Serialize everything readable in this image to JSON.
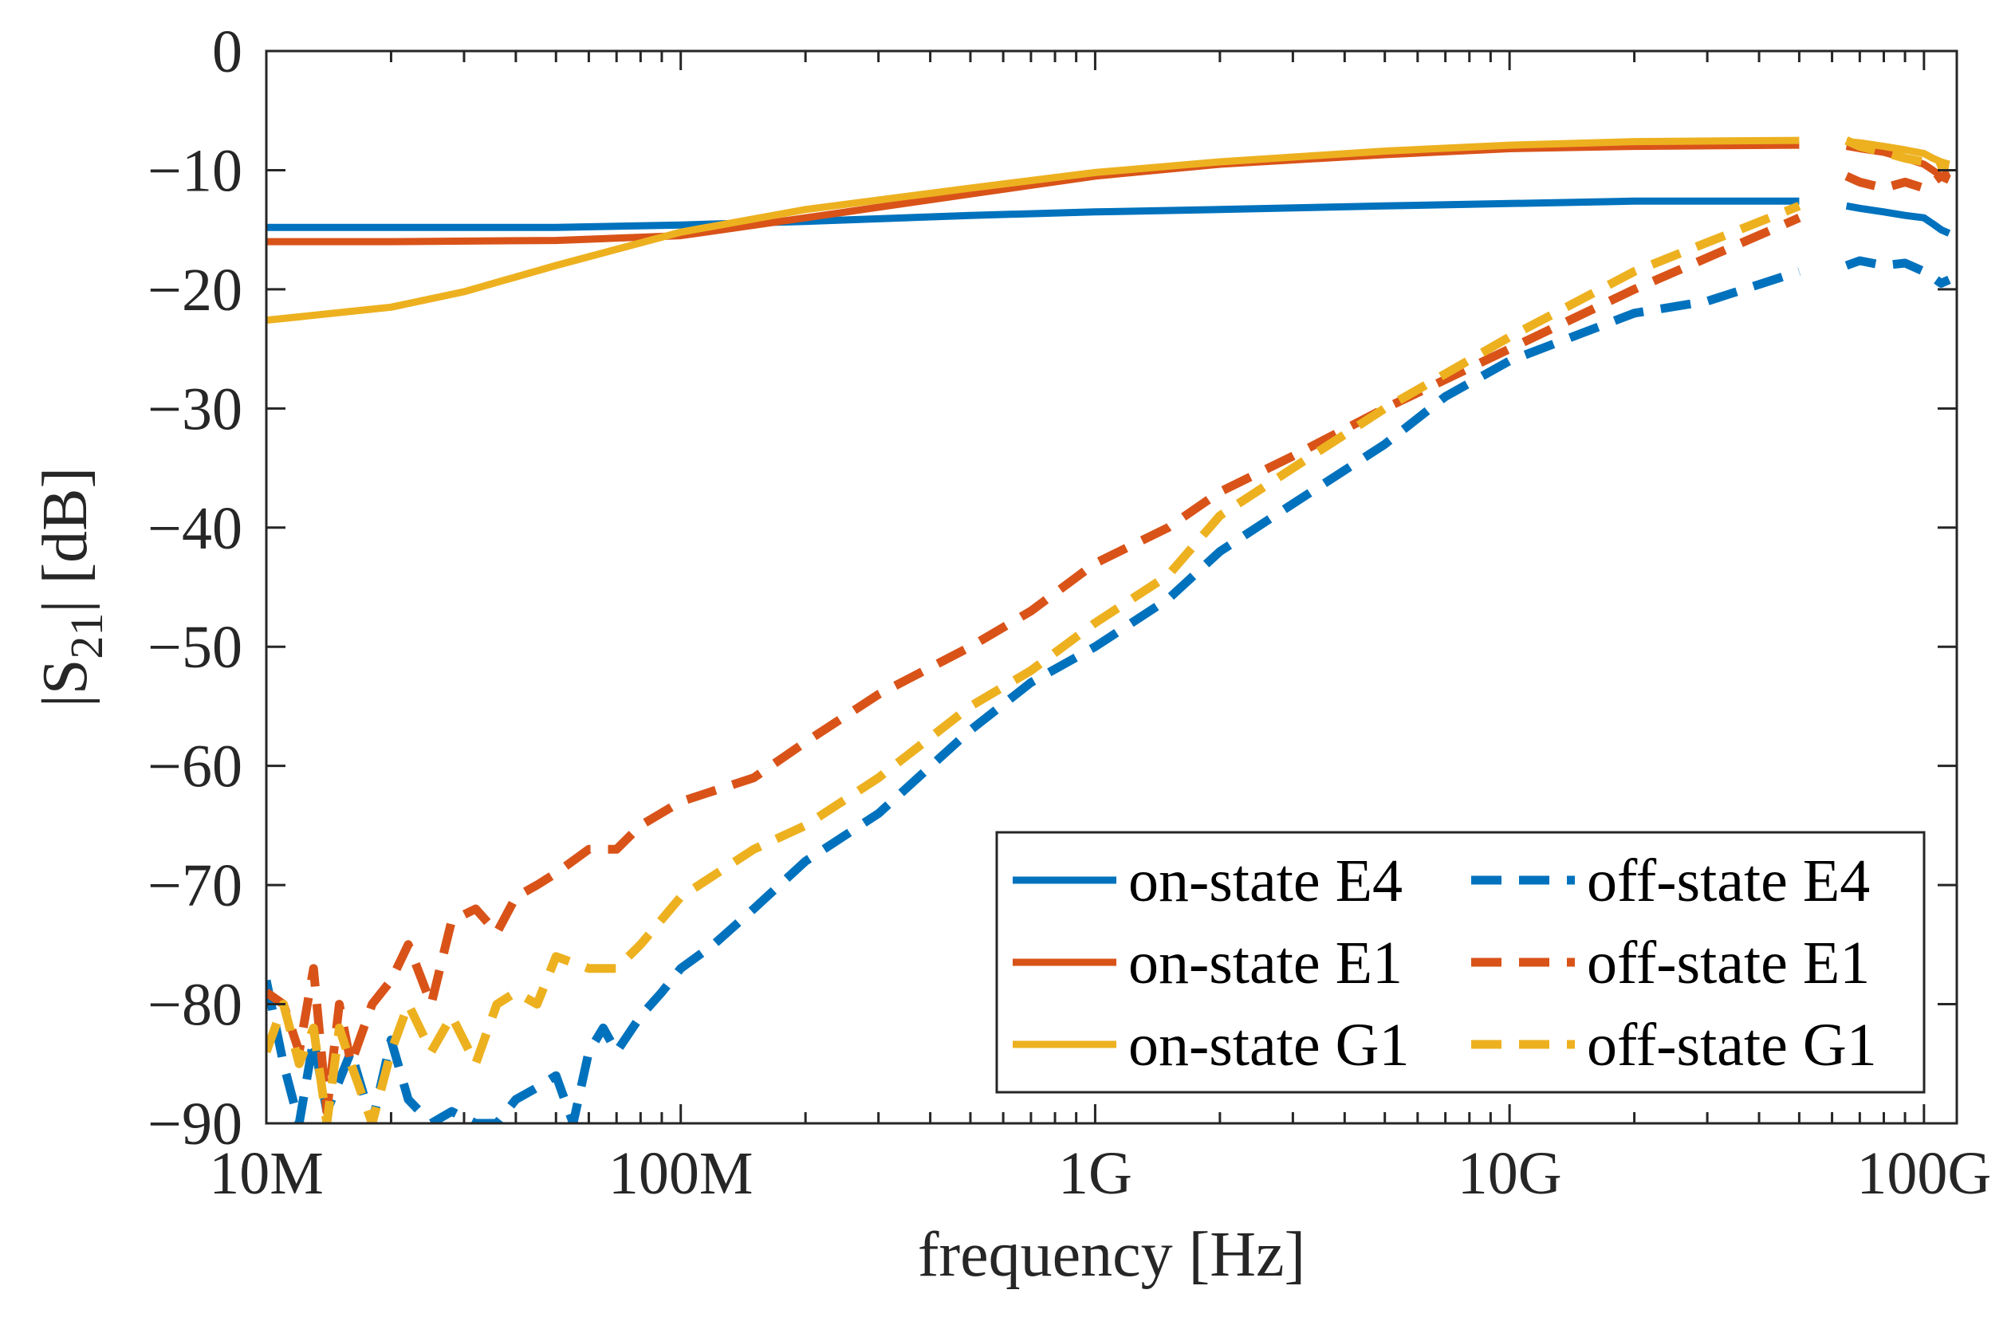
{
  "chart_data": {
    "type": "line",
    "xscale": "log",
    "xlim": [
      10000000,
      120000000000
    ],
    "ylim": [
      -90,
      0
    ],
    "xticks": [
      10000000,
      100000000,
      1000000000,
      10000000000,
      100000000000
    ],
    "xtick_labels": [
      "10M",
      "100M",
      "1G",
      "10G",
      "100G"
    ],
    "yticks": [
      0,
      -10,
      -20,
      -30,
      -40,
      -50,
      -60,
      -70,
      -80,
      -90
    ],
    "ytick_labels": [
      "0",
      "−10",
      "−20",
      "−30",
      "−40",
      "−50",
      "−60",
      "−70",
      "−80",
      "−90"
    ],
    "xlabel": "frequency [Hz]",
    "ylabel_main": "|S",
    "ylabel_sub": "21",
    "ylabel_tail": "| [dB]",
    "ylabel_full": "|S21| [dB]",
    "grid": false,
    "legend_location": "bottom-right",
    "legend_columns": 2,
    "series": [
      {
        "name": "on-state E4",
        "color": "#0072BD",
        "style": "solid",
        "segments": [
          {
            "x": [
              10000000,
              20000000,
              50000000,
              100000000,
              200000000,
              500000000,
              1000000000,
              2000000000,
              5000000000,
              10000000000,
              20000000000,
              50000000000
            ],
            "y": [
              -14.8,
              -14.8,
              -14.8,
              -14.6,
              -14.3,
              -13.8,
              -13.5,
              -13.3,
              -13.0,
              -12.8,
              -12.6,
              -12.6
            ]
          },
          {
            "x": [
              65000000000,
              70000000000,
              80000000000,
              90000000000,
              100000000000,
              105000000000,
              110000000000,
              115000000000
            ],
            "y": [
              -13.0,
              -13.2,
              -13.5,
              -13.8,
              -14.0,
              -14.5,
              -15.0,
              -15.3
            ]
          }
        ]
      },
      {
        "name": "on-state E1",
        "color": "#D95319",
        "style": "solid",
        "segments": [
          {
            "x": [
              10000000,
              20000000,
              50000000,
              100000000,
              200000000,
              500000000,
              1000000000,
              2000000000,
              5000000000,
              10000000000,
              20000000000,
              50000000000
            ],
            "y": [
              -16.0,
              -16.0,
              -15.9,
              -15.5,
              -14.0,
              -12.0,
              -10.5,
              -9.5,
              -8.7,
              -8.2,
              -8.0,
              -7.9
            ]
          },
          {
            "x": [
              65000000000,
              70000000000,
              80000000000,
              90000000000,
              100000000000,
              105000000000,
              110000000000,
              115000000000
            ],
            "y": [
              -8.0,
              -8.2,
              -8.5,
              -9.0,
              -9.5,
              -10.0,
              -10.5,
              -10.2
            ]
          }
        ]
      },
      {
        "name": "on-state G1",
        "color": "#EDB120",
        "style": "solid",
        "segments": [
          {
            "x": [
              10000000,
              20000000,
              30000000,
              50000000,
              100000000,
              200000000,
              500000000,
              1000000000,
              2000000000,
              5000000000,
              10000000000,
              20000000000,
              50000000000
            ],
            "y": [
              -22.6,
              -21.5,
              -20.2,
              -18.0,
              -15.2,
              -13.3,
              -11.5,
              -10.2,
              -9.3,
              -8.4,
              -7.9,
              -7.6,
              -7.5
            ]
          },
          {
            "x": [
              65000000000,
              70000000000,
              80000000000,
              90000000000,
              100000000000,
              105000000000,
              110000000000,
              115000000000
            ],
            "y": [
              -7.6,
              -7.7,
              -8.0,
              -8.3,
              -8.6,
              -9.0,
              -9.3,
              -9.5
            ]
          }
        ]
      },
      {
        "name": "off-state E4",
        "color": "#0072BD",
        "style": "dashed",
        "segments": [
          {
            "x": [
              10000000,
              11000000,
              12000000,
              13000000,
              14000000,
              16000000,
              18000000,
              20000000,
              22000000,
              25000000,
              28000000,
              32000000,
              36000000,
              40000000,
              45000000,
              50000000,
              55000000,
              60000000,
              65000000,
              70000000,
              80000000,
              90000000,
              100000000,
              120000000,
              150000000,
              200000000,
              300000000,
              500000000,
              700000000,
              1000000000,
              1500000000,
              2000000000,
              3000000000,
              5000000000,
              7000000000,
              10000000000,
              20000000000,
              30000000000,
              50000000000
            ],
            "y": [
              -78.0,
              -85.0,
              -90.0,
              -83.0,
              -89.0,
              -84.0,
              -90.0,
              -83.0,
              -88.0,
              -90.0,
              -89.0,
              -90.0,
              -90.0,
              -88.0,
              -87.0,
              -86.0,
              -90.0,
              -84.0,
              -82.0,
              -84.0,
              -81.0,
              -79.0,
              -77.0,
              -75.0,
              -72.0,
              -68.0,
              -64.0,
              -57.0,
              -53.0,
              -50.0,
              -46.0,
              -42.0,
              -38.0,
              -33.0,
              -29.0,
              -26.0,
              -22.0,
              -21.0,
              -18.5
            ]
          },
          {
            "x": [
              65000000000,
              70000000000,
              80000000000,
              90000000000,
              100000000000,
              105000000000,
              110000000000,
              115000000000
            ],
            "y": [
              -18.0,
              -17.6,
              -18.0,
              -17.8,
              -18.5,
              -19.0,
              -19.5,
              -19.2
            ]
          }
        ]
      },
      {
        "name": "off-state E1",
        "color": "#D95319",
        "style": "dashed",
        "segments": [
          {
            "x": [
              10000000,
              11000000,
              12000000,
              13000000,
              14000000,
              15000000,
              16000000,
              18000000,
              20000000,
              22000000,
              25000000,
              28000000,
              32000000,
              36000000,
              40000000,
              45000000,
              50000000,
              60000000,
              70000000,
              80000000,
              100000000,
              150000000,
              200000000,
              300000000,
              500000000,
              700000000,
              1000000000,
              1500000000,
              2000000000,
              3000000000,
              5000000000,
              10000000000,
              20000000000,
              50000000000
            ],
            "y": [
              -79.0,
              -80.0,
              -84.0,
              -77.0,
              -89.0,
              -80.0,
              -85.0,
              -80.0,
              -78.0,
              -75.0,
              -80.0,
              -73.0,
              -72.0,
              -74.0,
              -71.0,
              -70.0,
              -69.0,
              -67.0,
              -67.0,
              -65.0,
              -63.0,
              -61.0,
              -58.0,
              -54.0,
              -50.0,
              -47.0,
              -43.0,
              -40.0,
              -37.0,
              -34.0,
              -30.0,
              -25.0,
              -20.0,
              -14.0
            ]
          },
          {
            "x": [
              65000000000,
              70000000000,
              80000000000,
              90000000000,
              100000000000,
              105000000000,
              110000000000,
              115000000000
            ],
            "y": [
              -10.5,
              -11.0,
              -11.5,
              -11.0,
              -11.5,
              -11.0,
              -10.5,
              -10.8
            ]
          }
        ]
      },
      {
        "name": "off-state G1",
        "color": "#EDB120",
        "style": "dashed",
        "segments": [
          {
            "x": [
              10000000,
              11000000,
              12000000,
              13000000,
              14000000,
              15000000,
              16000000,
              18000000,
              20000000,
              22000000,
              25000000,
              28000000,
              32000000,
              36000000,
              40000000,
              45000000,
              50000000,
              60000000,
              70000000,
              80000000,
              100000000,
              150000000,
              200000000,
              300000000,
              500000000,
              700000000,
              1000000000,
              1500000000,
              2000000000,
              3000000000,
              5000000000,
              10000000000,
              20000000000,
              50000000000
            ],
            "y": [
              -84.0,
              -80.0,
              -85.0,
              -82.0,
              -90.0,
              -82.0,
              -85.0,
              -90.0,
              -84.0,
              -80.0,
              -84.0,
              -81.0,
              -85.0,
              -80.0,
              -79.0,
              -80.0,
              -76.0,
              -77.0,
              -77.0,
              -75.0,
              -71.0,
              -67.0,
              -65.0,
              -61.0,
              -55.0,
              -52.0,
              -48.0,
              -44.0,
              -39.0,
              -35.0,
              -30.0,
              -24.0,
              -18.5,
              -13.0
            ]
          },
          {
            "x": [
              65000000000,
              70000000000,
              80000000000,
              90000000000,
              100000000000,
              105000000000,
              110000000000,
              115000000000
            ],
            "y": [
              -7.5,
              -8.0,
              -8.5,
              -9.0,
              -9.3,
              -9.8,
              -9.5,
              -9.6
            ]
          }
        ]
      }
    ]
  }
}
